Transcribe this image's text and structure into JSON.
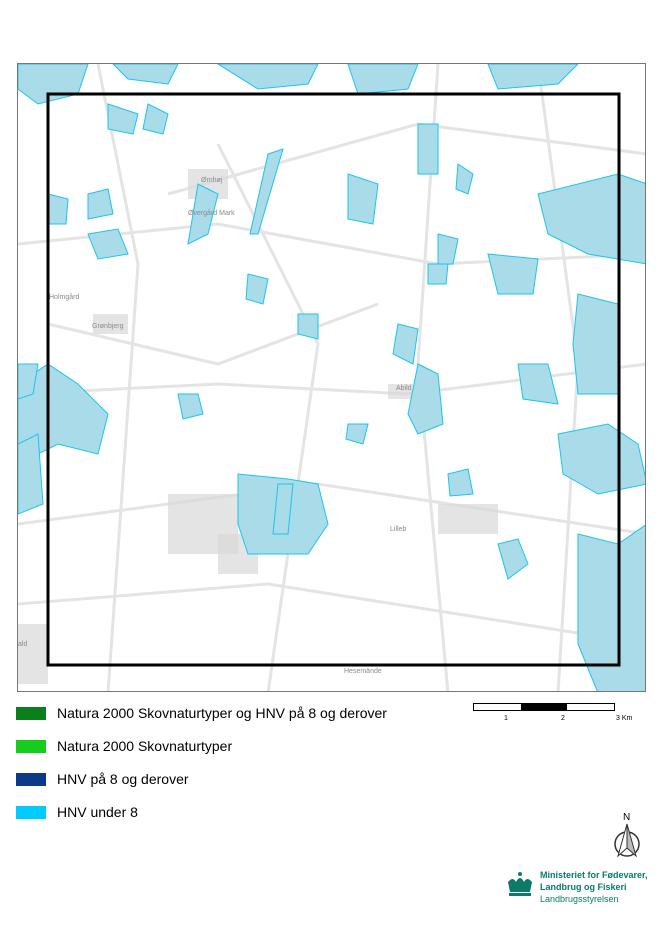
{
  "map": {
    "places": [
      "Ørnhøj",
      "Øvergård Mark",
      "Holmgård",
      "Grønbjerg",
      "Abild",
      "Lilleb",
      "Hesemände",
      "ald"
    ],
    "fill_color": "#a9dbe8",
    "outline_color": "#1cc4ef",
    "road_color": "#e4e4e4",
    "settlement_color": "#d9d9d9",
    "frame_color": "#000000"
  },
  "legend": {
    "items": [
      {
        "label": "Natura 2000 Skovnaturtyper og HNV på 8 og derover",
        "color": "#0b7f1c"
      },
      {
        "label": "Natura 2000 Skovnaturtyper",
        "color": "#16cc1c"
      },
      {
        "label": "HNV på 8 og derover",
        "color": "#0a3a88"
      },
      {
        "label": "HNV under 8",
        "color": "#00ccff"
      }
    ]
  },
  "scale": {
    "labels": [
      "1",
      "2",
      "3 Km"
    ]
  },
  "north_arrow": {
    "label": "N",
    "icon": "north-arrow-icon"
  },
  "logo": {
    "line1": "Ministeriet for Fødevarer,",
    "line2": "Landbrug og Fiskeri",
    "line3": "Landbrugsstyrelsen",
    "color": "#0b7a6b",
    "icon": "crown-icon"
  }
}
